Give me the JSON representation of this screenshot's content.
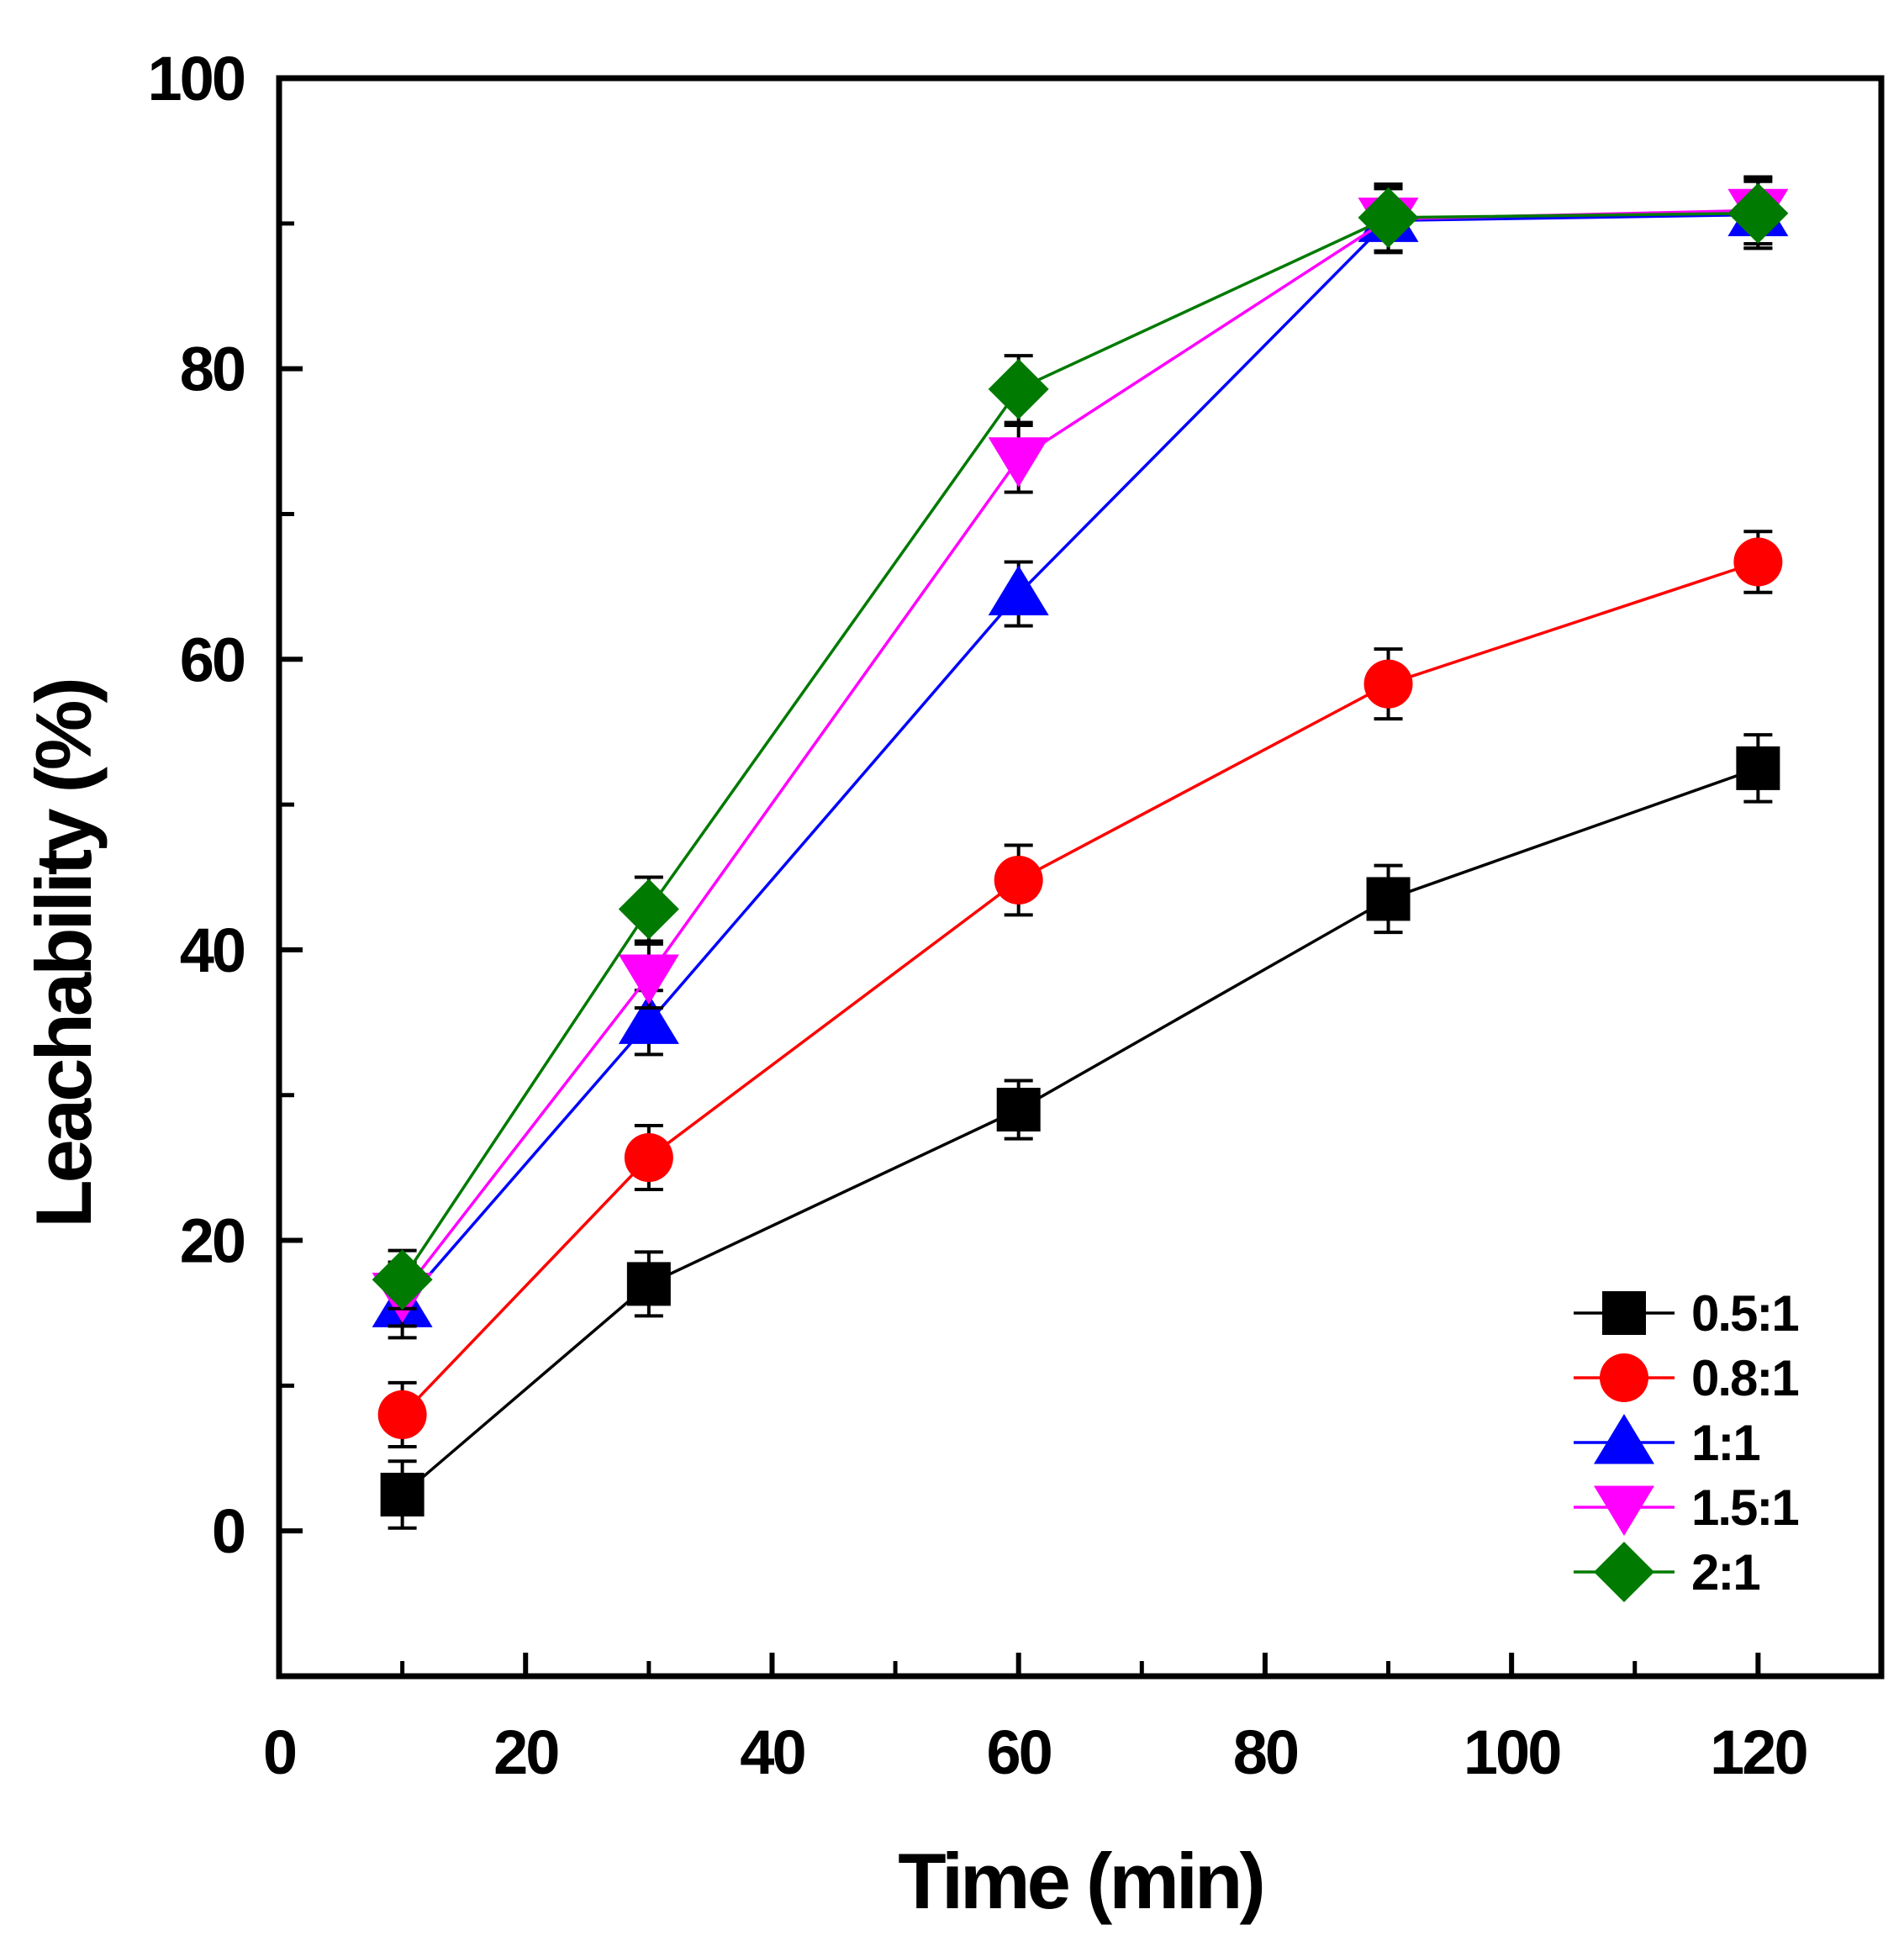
{
  "chart_data": {
    "type": "line",
    "title": "",
    "xlabel": "Time (min)",
    "ylabel": "Leachability (%)",
    "xlim": [
      0,
      130
    ],
    "ylim": [
      -10,
      100
    ],
    "xticks": [
      0,
      20,
      40,
      60,
      80,
      100,
      120
    ],
    "xticks_minor": [
      10,
      30,
      50,
      70,
      90,
      110
    ],
    "yticks": [
      0,
      20,
      40,
      60,
      80,
      100
    ],
    "yticks_minor": [
      10,
      30,
      50,
      70,
      90
    ],
    "grid": false,
    "legend_position": "bottom-right",
    "x": [
      10,
      30,
      60,
      90,
      120
    ],
    "series": [
      {
        "name": "0.5:1",
        "color": "#000000",
        "marker": "square",
        "values": [
          2.5,
          17.0,
          29.0,
          43.5,
          52.5
        ],
        "errors": [
          2.3,
          2.2,
          2.0,
          2.3,
          2.3
        ]
      },
      {
        "name": "0.8:1",
        "color": "#ff0000",
        "marker": "circle",
        "values": [
          8.0,
          25.7,
          44.8,
          58.3,
          66.7
        ],
        "errors": [
          2.2,
          2.2,
          2.4,
          2.4,
          2.1
        ]
      },
      {
        "name": "1:1",
        "color": "#0000ff",
        "marker": "triangle-up",
        "values": [
          15.5,
          35.0,
          64.5,
          90.2,
          90.6
        ],
        "errors": [
          2.2,
          2.2,
          2.2,
          2.2,
          2.3
        ]
      },
      {
        "name": "1.5:1",
        "color": "#ff00ff",
        "marker": "triangle-down",
        "values": [
          16.3,
          38.2,
          73.8,
          90.3,
          90.9
        ],
        "errors": [
          2.2,
          2.2,
          2.3,
          2.2,
          2.3
        ]
      },
      {
        "name": "2:1",
        "color": "#007a00",
        "marker": "diamond",
        "values": [
          17.3,
          42.8,
          78.6,
          90.4,
          90.7
        ],
        "errors": [
          2.0,
          2.2,
          2.3,
          2.3,
          2.4
        ]
      }
    ]
  }
}
